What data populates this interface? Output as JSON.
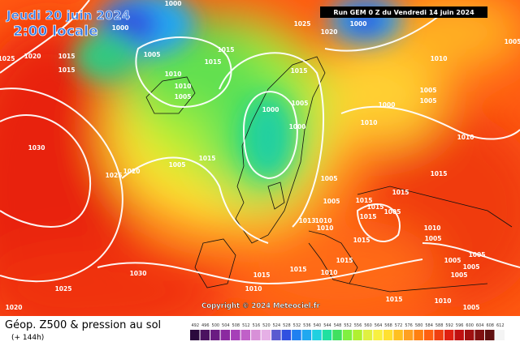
{
  "header": {
    "date": "Jeudi 20 juin 2024",
    "time": "2:00 locale",
    "run": "Run GEM 0 Z du Vendredi 14 juin 2024"
  },
  "map": {
    "copyright": "Copyright © 2024 Meteociel.fr",
    "isobar_labels": [
      1000,
      1000,
      1000,
      1025,
      1020,
      1020,
      1025,
      1015,
      1015,
      1005,
      1015,
      1015,
      1010,
      1010,
      1005,
      1015,
      1005,
      1000,
      1000,
      1010,
      1000,
      1005,
      1005,
      1010,
      1005,
      1010,
      1030,
      1020,
      1025,
      1005,
      1015,
      1005,
      1015,
      1015,
      1005,
      1015,
      1015,
      1015,
      1005,
      1013,
      1010,
      1010,
      1010,
      1005,
      1015,
      1005,
      1005,
      1005,
      1010,
      1015,
      1015,
      1015,
      1030,
      1025,
      1010,
      1015,
      1020,
      1010,
      1005,
      1005
    ]
  },
  "footer": {
    "title": "Géop. Z500 & pression au sol",
    "lead": "(+ 144h)"
  },
  "colorbar": {
    "ticks": [
      492,
      496,
      500,
      504,
      508,
      512,
      516,
      520,
      524,
      528,
      532,
      536,
      540,
      544,
      548,
      552,
      556,
      560,
      564,
      568,
      572,
      576,
      580,
      584,
      588,
      592,
      596,
      600,
      604,
      608,
      612
    ],
    "colors": [
      "#2b0a3d",
      "#4b1360",
      "#6a1c82",
      "#8b2aa0",
      "#a640b8",
      "#c060c8",
      "#d890d8",
      "#e6b0e6",
      "#5a5ad0",
      "#3050e0",
      "#2080f0",
      "#20a8f0",
      "#20d0e0",
      "#20e0a0",
      "#40e060",
      "#80f040",
      "#b0f030",
      "#e0f040",
      "#f8f040",
      "#ffe030",
      "#ffc020",
      "#ffa020",
      "#ff8010",
      "#ff6010",
      "#f04010",
      "#e02010",
      "#c01010",
      "#a01010",
      "#801010",
      "#601010",
      "#f4f4f4"
    ]
  }
}
